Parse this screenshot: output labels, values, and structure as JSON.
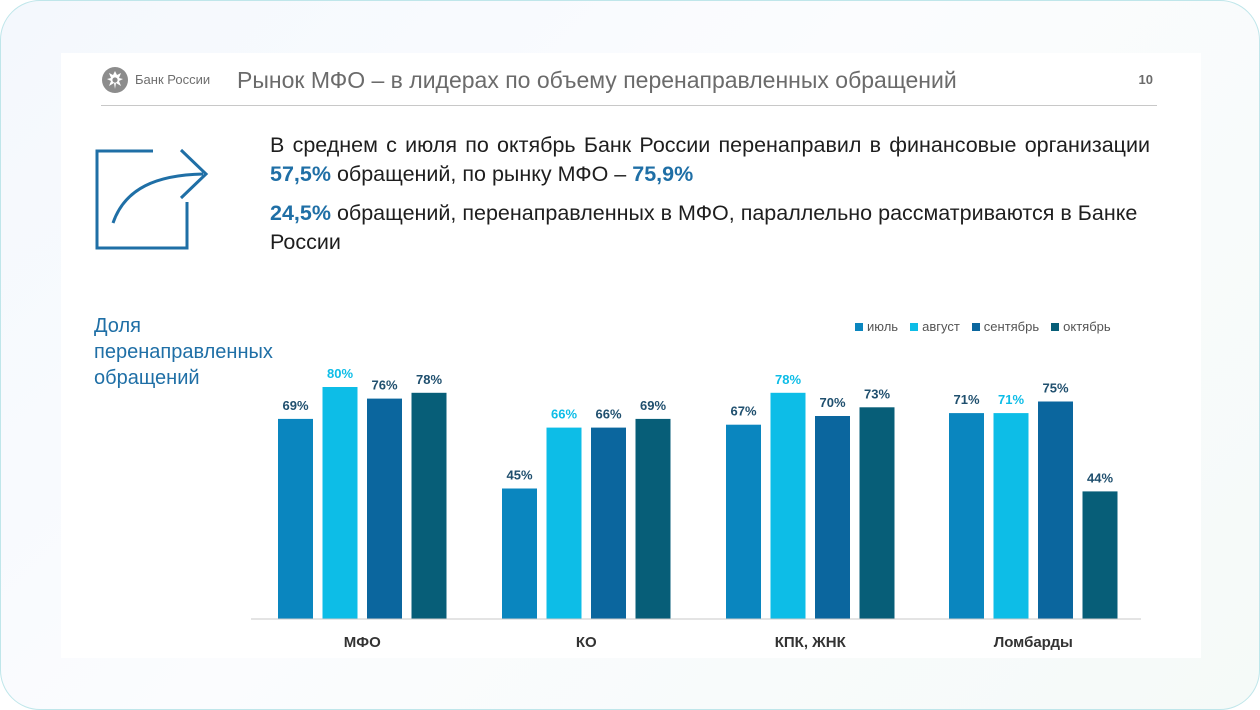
{
  "header": {
    "logo_text": "Банк России",
    "title": "Рынок МФО – в лидерах по объему перенаправленных обращений",
    "page_number": "10"
  },
  "summary": {
    "p1_pre": "В среднем с июля по октябрь Банк России перенаправил в финансовые организации ",
    "p1_v1": "57,5%",
    "p1_mid": " обращений, по рынку МФО – ",
    "p1_v2": "75,9%",
    "p2_v": "24,5%",
    "p2_text": " обращений, перенаправленных в МФО, параллельно рассматриваются в Банке России"
  },
  "icons": {
    "logo": "bank-of-russia-emblem-icon",
    "share": "share-arrow-icon"
  },
  "chart_data": {
    "type": "bar",
    "title_lines": [
      "Доля",
      "перенаправленных",
      "обращений"
    ],
    "categories": [
      "МФО",
      "КО",
      "КПК, ЖНК",
      "Ломбарды"
    ],
    "series": [
      {
        "name": "июль",
        "color": "#0a86bf",
        "values": [
          69,
          45,
          67,
          71
        ],
        "labels": [
          "69%",
          "45%",
          "67%",
          "71%"
        ]
      },
      {
        "name": "август",
        "color": "#0dbde7",
        "values": [
          80,
          66,
          78,
          71
        ],
        "labels": [
          "80%",
          "66%",
          "78%",
          "71%"
        ]
      },
      {
        "name": "сентябрь",
        "color": "#0b669e",
        "values": [
          76,
          66,
          70,
          75
        ],
        "labels": [
          "76%",
          "66%",
          "70%",
          "75%"
        ]
      },
      {
        "name": "октябрь",
        "color": "#075e78",
        "values": [
          78,
          69,
          73,
          44
        ],
        "labels": [
          "78%",
          "69%",
          "73%",
          "44%"
        ]
      }
    ],
    "ylim": [
      0,
      100
    ],
    "grid": false,
    "legend_position": "top-right"
  },
  "colors": {
    "accent": "#1f6fa6",
    "label_light": "#0dbde7",
    "label_dark": "#1f4f6e"
  }
}
